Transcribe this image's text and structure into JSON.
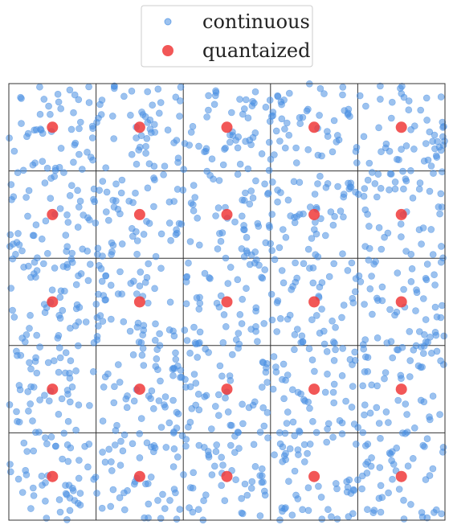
{
  "chart_data": {
    "type": "scatter",
    "title": "",
    "xlabel": "",
    "ylabel": "",
    "xlim": [
      0,
      5
    ],
    "ylim": [
      0,
      5
    ],
    "grid": true,
    "grid_cells": 5,
    "legend": {
      "placement": "top-center",
      "entries": [
        {
          "name": "continuous",
          "color": "#4a90e2",
          "marker": "circle-small"
        },
        {
          "name": "quantaized",
          "color": "#f0393a",
          "marker": "circle-large"
        }
      ]
    },
    "series": [
      {
        "name": "continuous",
        "color": "#4a90e2",
        "alpha": 0.55,
        "points_per_cell_approx": 50,
        "distribution": "uniform random within each grid cell"
      },
      {
        "name": "quantaized",
        "color": "#f0393a",
        "alpha": 0.85,
        "points": [
          [
            0.5,
            0.5
          ],
          [
            1.5,
            0.5
          ],
          [
            2.5,
            0.5
          ],
          [
            3.5,
            0.5
          ],
          [
            4.5,
            0.5
          ],
          [
            0.5,
            1.5
          ],
          [
            1.5,
            1.5
          ],
          [
            2.5,
            1.5
          ],
          [
            3.5,
            1.5
          ],
          [
            4.5,
            1.5
          ],
          [
            0.5,
            2.5
          ],
          [
            1.5,
            2.5
          ],
          [
            2.5,
            2.5
          ],
          [
            3.5,
            2.5
          ],
          [
            4.5,
            2.5
          ],
          [
            0.5,
            3.5
          ],
          [
            1.5,
            3.5
          ],
          [
            2.5,
            3.5
          ],
          [
            3.5,
            3.5
          ],
          [
            4.5,
            3.5
          ],
          [
            0.5,
            4.5
          ],
          [
            1.5,
            4.5
          ],
          [
            2.5,
            4.5
          ],
          [
            3.5,
            4.5
          ],
          [
            4.5,
            4.5
          ]
        ]
      }
    ]
  }
}
